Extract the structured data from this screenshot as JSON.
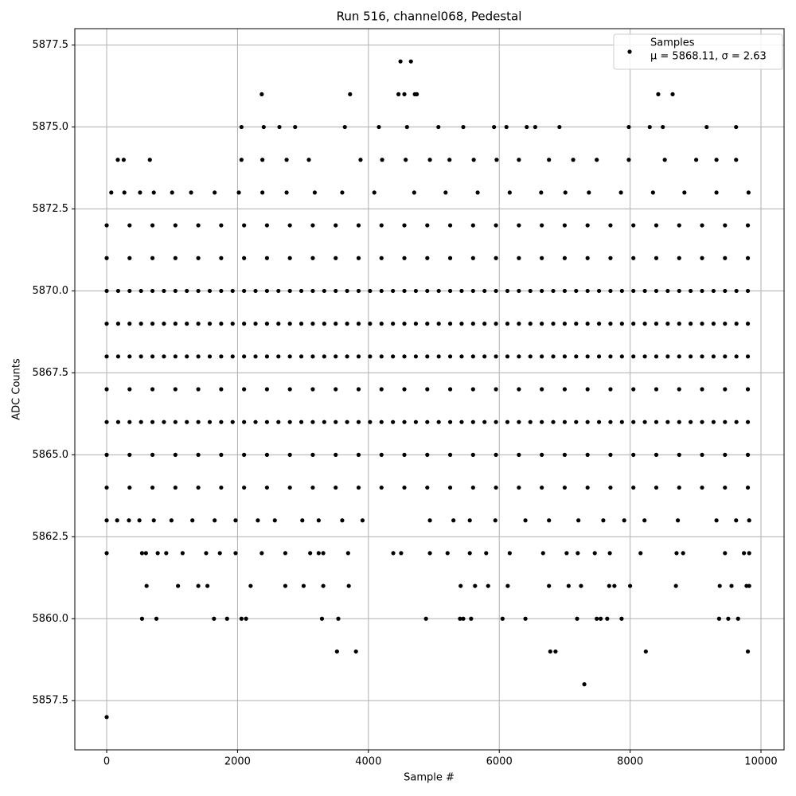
{
  "chart_data": {
    "type": "scatter",
    "title": "Run 516, channel068, Pedestal",
    "xlabel": "Sample #",
    "ylabel": "ADC Counts",
    "xlim": [
      -487,
      10353
    ],
    "ylim": [
      5856.0,
      5878.0
    ],
    "xticks": [
      0,
      2000,
      4000,
      6000,
      8000,
      10000
    ],
    "yticks": [
      5857.5,
      {
        "value": 5860,
        "label": "5860.0"
      },
      5862.5,
      {
        "value": 5865,
        "label": "5865.0"
      },
      5867.5,
      {
        "value": 5870,
        "label": "5870.0"
      },
      5872.5,
      {
        "value": 5875,
        "label": "5875.0"
      },
      5877.5
    ],
    "grid": true,
    "legend": "upper right",
    "series": [
      {
        "name": "Samples",
        "stats": "μ = 5868.11, σ = 2.63",
        "color": "#000000",
        "x": [
          0,
          4490,
          4650,
          2370,
          3720,
          4460,
          4550,
          4710,
          4740,
          8430,
          8650,
          7300,
          3520,
          3810,
          6780,
          6860,
          8240,
          9800,
          540,
          760,
          1640,
          1840,
          2060,
          2130,
          3290,
          3540,
          4880,
          5400,
          5450,
          5570,
          6050,
          6400,
          7190,
          7490,
          7550,
          7650,
          7870,
          9360,
          9500,
          9650,
          610,
          1090,
          1400,
          1540,
          2200,
          2730,
          3010,
          3310,
          3700,
          5410,
          5630,
          5830,
          6130,
          6760,
          7060,
          7250,
          7680,
          7760,
          8000,
          8700,
          9370,
          9550,
          9780,
          9820,
          0,
          540,
          600,
          780,
          910,
          1160,
          1520,
          1730,
          1970,
          2370,
          2730,
          3110,
          3240,
          3310,
          3690,
          4380,
          4500,
          4940,
          5210,
          5550,
          5800,
          6160,
          6670,
          7030,
          7200,
          7460,
          7690,
          8160,
          8710,
          8810,
          9450,
          9740,
          9820,
          0,
          160,
          340,
          500,
          720,
          990,
          1310,
          1650,
          1970,
          2310,
          2570,
          2990,
          3240,
          3600,
          3910,
          4940,
          5300,
          5550,
          5940,
          6400,
          6760,
          7210,
          7590,
          7910,
          8220,
          8730,
          9320,
          9620,
          9820,
          0,
          350,
          700,
          1050,
          1400,
          1750,
          2100,
          2450,
          2800,
          3150,
          3500,
          3850,
          4200,
          4550,
          4900,
          5250,
          5600,
          5950,
          6300,
          6650,
          7000,
          7350,
          7700,
          8050,
          8400,
          8750,
          9100,
          9450,
          9800,
          0,
          350,
          700,
          1050,
          1400,
          1750,
          2100,
          2450,
          2800,
          3150,
          3500,
          3850,
          4200,
          4550,
          4900,
          5250,
          5600,
          5950,
          6300,
          6650,
          7000,
          7350,
          7700,
          8050,
          8400,
          8750,
          9100,
          9450,
          9800,
          0,
          350,
          700,
          1050,
          1400,
          1750,
          2100,
          2450,
          2800,
          3150,
          3500,
          3850,
          4200,
          4550,
          4900,
          5250,
          5600,
          5950,
          6300,
          6650,
          7000,
          7350,
          7700,
          8050,
          8400,
          8750,
          9100,
          9450,
          9800,
          175,
          525,
          875,
          1225,
          1575,
          1925,
          2275,
          2625,
          2975,
          3325,
          3675,
          4025,
          4375,
          4725,
          5075,
          5425,
          5775,
          6125,
          6475,
          6825,
          7175,
          7525,
          7875,
          8225,
          8575,
          8925,
          9275,
          9625,
          0,
          350,
          700,
          1050,
          1400,
          1750,
          2100,
          2450,
          2800,
          3150,
          3500,
          3850,
          4200,
          4550,
          4900,
          5250,
          5600,
          5950,
          6300,
          6650,
          7000,
          7350,
          7700,
          8050,
          8400,
          8750,
          9100,
          9450,
          9800,
          0,
          350,
          700,
          1050,
          1400,
          1750,
          2100,
          2450,
          2800,
          3150,
          3500,
          3850,
          4200,
          4550,
          4900,
          5250,
          5600,
          5950,
          6300,
          6650,
          7000,
          7350,
          7700,
          8050,
          8400,
          8750,
          9100,
          9450,
          9800,
          175,
          525,
          875,
          1225,
          1575,
          1925,
          2275,
          2625,
          2975,
          3325,
          3675,
          4025,
          4375,
          4725,
          5075,
          5425,
          5775,
          6125,
          6475,
          6825,
          7175,
          7525,
          7875,
          8225,
          8575,
          8925,
          9275,
          9625,
          0,
          350,
          700,
          1050,
          1400,
          1750,
          2100,
          2450,
          2800,
          3150,
          3500,
          3850,
          4200,
          4550,
          4900,
          5250,
          5600,
          5950,
          6300,
          6650,
          7000,
          7350,
          7700,
          8050,
          8400,
          8750,
          9100,
          9450,
          9800,
          175,
          525,
          875,
          1225,
          1575,
          1925,
          2275,
          2625,
          2975,
          3325,
          3675,
          4025,
          4375,
          4725,
          5075,
          5425,
          5775,
          6125,
          6475,
          6825,
          7175,
          7525,
          7875,
          8225,
          8575,
          8925,
          9275,
          9625,
          0,
          350,
          700,
          1050,
          1400,
          1750,
          2100,
          2450,
          2800,
          3150,
          3500,
          3850,
          4200,
          4550,
          4900,
          5250,
          5600,
          5950,
          6300,
          6650,
          7000,
          7350,
          7700,
          8050,
          8400,
          8750,
          9100,
          9450,
          9800,
          175,
          525,
          875,
          1225,
          1575,
          1925,
          2275,
          2625,
          2975,
          3325,
          3675,
          4025,
          4375,
          4725,
          5075,
          5425,
          5775,
          6125,
          6475,
          6825,
          7175,
          7525,
          7875,
          8225,
          8575,
          8925,
          9275,
          9625,
          0,
          350,
          700,
          1050,
          1400,
          1750,
          2100,
          2450,
          2800,
          3150,
          3500,
          3850,
          4200,
          4550,
          4900,
          5250,
          5600,
          5950,
          6300,
          6650,
          7000,
          7350,
          7700,
          8050,
          8400,
          8750,
          9100,
          9450,
          9800,
          0,
          350,
          700,
          1050,
          1400,
          1750,
          2100,
          2450,
          2800,
          3150,
          3500,
          3850,
          4200,
          4550,
          4900,
          5250,
          5600,
          5950,
          6300,
          6650,
          7000,
          7350,
          7700,
          8050,
          8400,
          8750,
          9100,
          9450,
          9800,
          70,
          270,
          510,
          720,
          1000,
          1290,
          1650,
          2020,
          2380,
          2750,
          3180,
          3600,
          4090,
          4700,
          5180,
          5670,
          6160,
          6640,
          7010,
          7370,
          7860,
          8350,
          8830,
          9320,
          9810,
          170,
          260,
          660,
          2060,
          2380,
          2750,
          3090,
          3880,
          4210,
          4570,
          4940,
          5240,
          5610,
          5960,
          6300,
          6760,
          7130,
          7490,
          7980,
          8530,
          9010,
          9320,
          9620,
          2060,
          2400,
          2640,
          2880,
          3640,
          4160,
          4590,
          5070,
          5450,
          5920,
          6110,
          6420,
          6550,
          6920,
          7980,
          8300,
          8500,
          9170,
          9620
        ],
        "values": [
          5857,
          5877,
          5877,
          5876,
          5876,
          5876,
          5876,
          5876,
          5876,
          5876,
          5876,
          5858,
          5859,
          5859,
          5859,
          5859,
          5859,
          5859,
          5860,
          5860,
          5860,
          5860,
          5860,
          5860,
          5860,
          5860,
          5860,
          5860,
          5860,
          5860,
          5860,
          5860,
          5860,
          5860,
          5860,
          5860,
          5860,
          5860,
          5860,
          5860,
          5861,
          5861,
          5861,
          5861,
          5861,
          5861,
          5861,
          5861,
          5861,
          5861,
          5861,
          5861,
          5861,
          5861,
          5861,
          5861,
          5861,
          5861,
          5861,
          5861,
          5861,
          5861,
          5861,
          5861,
          5862,
          5862,
          5862,
          5862,
          5862,
          5862,
          5862,
          5862,
          5862,
          5862,
          5862,
          5862,
          5862,
          5862,
          5862,
          5862,
          5862,
          5862,
          5862,
          5862,
          5862,
          5862,
          5862,
          5862,
          5862,
          5862,
          5862,
          5862,
          5862,
          5862,
          5862,
          5862,
          5862,
          5863,
          5863,
          5863,
          5863,
          5863,
          5863,
          5863,
          5863,
          5863,
          5863,
          5863,
          5863,
          5863,
          5863,
          5863,
          5863,
          5863,
          5863,
          5863,
          5863,
          5863,
          5863,
          5863,
          5863,
          5863,
          5863,
          5863,
          5863,
          5863,
          5864,
          5864,
          5864,
          5864,
          5864,
          5864,
          5864,
          5864,
          5864,
          5864,
          5864,
          5864,
          5864,
          5864,
          5864,
          5864,
          5864,
          5864,
          5864,
          5864,
          5864,
          5864,
          5864,
          5864,
          5864,
          5864,
          5864,
          5864,
          5864,
          5865,
          5865,
          5865,
          5865,
          5865,
          5865,
          5865,
          5865,
          5865,
          5865,
          5865,
          5865,
          5865,
          5865,
          5865,
          5865,
          5865,
          5865,
          5865,
          5865,
          5865,
          5865,
          5865,
          5865,
          5865,
          5865,
          5865,
          5865,
          5865,
          5866,
          5866,
          5866,
          5866,
          5866,
          5866,
          5866,
          5866,
          5866,
          5866,
          5866,
          5866,
          5866,
          5866,
          5866,
          5866,
          5866,
          5866,
          5866,
          5866,
          5866,
          5866,
          5866,
          5866,
          5866,
          5866,
          5866,
          5866,
          5866,
          5866,
          5866,
          5866,
          5866,
          5866,
          5866,
          5866,
          5866,
          5866,
          5866,
          5866,
          5866,
          5866,
          5866,
          5866,
          5866,
          5866,
          5866,
          5866,
          5866,
          5866,
          5866,
          5866,
          5866,
          5866,
          5866,
          5866,
          5866,
          5867,
          5867,
          5867,
          5867,
          5867,
          5867,
          5867,
          5867,
          5867,
          5867,
          5867,
          5867,
          5867,
          5867,
          5867,
          5867,
          5867,
          5867,
          5867,
          5867,
          5867,
          5867,
          5867,
          5867,
          5867,
          5867,
          5867,
          5867,
          5867,
          5868,
          5868,
          5868,
          5868,
          5868,
          5868,
          5868,
          5868,
          5868,
          5868,
          5868,
          5868,
          5868,
          5868,
          5868,
          5868,
          5868,
          5868,
          5868,
          5868,
          5868,
          5868,
          5868,
          5868,
          5868,
          5868,
          5868,
          5868,
          5868,
          5868,
          5868,
          5868,
          5868,
          5868,
          5868,
          5868,
          5868,
          5868,
          5868,
          5868,
          5868,
          5868,
          5868,
          5868,
          5868,
          5868,
          5868,
          5868,
          5868,
          5868,
          5868,
          5868,
          5868,
          5868,
          5868,
          5868,
          5868,
          5869,
          5869,
          5869,
          5869,
          5869,
          5869,
          5869,
          5869,
          5869,
          5869,
          5869,
          5869,
          5869,
          5869,
          5869,
          5869,
          5869,
          5869,
          5869,
          5869,
          5869,
          5869,
          5869,
          5869,
          5869,
          5869,
          5869,
          5869,
          5869,
          5869,
          5869,
          5869,
          5869,
          5869,
          5869,
          5869,
          5869,
          5869,
          5869,
          5869,
          5869,
          5869,
          5869,
          5869,
          5869,
          5869,
          5869,
          5869,
          5869,
          5869,
          5869,
          5869,
          5869,
          5869,
          5869,
          5869,
          5869,
          5870,
          5870,
          5870,
          5870,
          5870,
          5870,
          5870,
          5870,
          5870,
          5870,
          5870,
          5870,
          5870,
          5870,
          5870,
          5870,
          5870,
          5870,
          5870,
          5870,
          5870,
          5870,
          5870,
          5870,
          5870,
          5870,
          5870,
          5870,
          5870,
          5870,
          5870,
          5870,
          5870,
          5870,
          5870,
          5870,
          5870,
          5870,
          5870,
          5870,
          5870,
          5870,
          5870,
          5870,
          5870,
          5870,
          5870,
          5870,
          5870,
          5870,
          5870,
          5870,
          5870,
          5870,
          5870,
          5870,
          5870,
          5871,
          5871,
          5871,
          5871,
          5871,
          5871,
          5871,
          5871,
          5871,
          5871,
          5871,
          5871,
          5871,
          5871,
          5871,
          5871,
          5871,
          5871,
          5871,
          5871,
          5871,
          5871,
          5871,
          5871,
          5871,
          5871,
          5871,
          5871,
          5871,
          5872,
          5872,
          5872,
          5872,
          5872,
          5872,
          5872,
          5872,
          5872,
          5872,
          5872,
          5872,
          5872,
          5872,
          5872,
          5872,
          5872,
          5872,
          5872,
          5872,
          5872,
          5872,
          5872,
          5872,
          5872,
          5872,
          5872,
          5872,
          5872,
          5873,
          5873,
          5873,
          5873,
          5873,
          5873,
          5873,
          5873,
          5873,
          5873,
          5873,
          5873,
          5873,
          5873,
          5873,
          5873,
          5873,
          5873,
          5873,
          5873,
          5873,
          5873,
          5873,
          5873,
          5873,
          5874,
          5874,
          5874,
          5874,
          5874,
          5874,
          5874,
          5874,
          5874,
          5874,
          5874,
          5874,
          5874,
          5874,
          5874,
          5874,
          5874,
          5874,
          5874,
          5874,
          5874,
          5874,
          5874,
          5875,
          5875,
          5875,
          5875,
          5875,
          5875,
          5875,
          5875,
          5875,
          5875,
          5875,
          5875,
          5875,
          5875,
          5875,
          5875,
          5875,
          5875,
          5875
        ]
      }
    ]
  }
}
